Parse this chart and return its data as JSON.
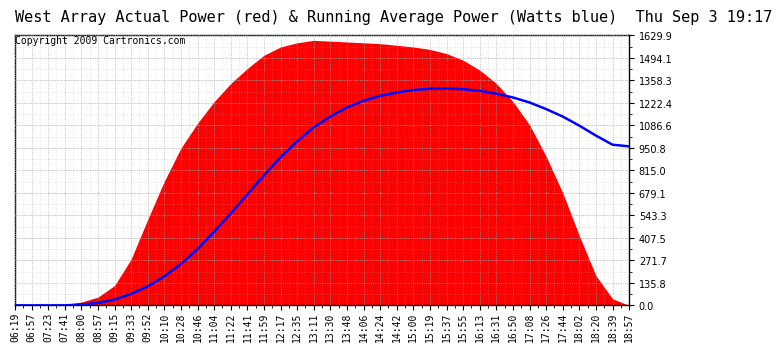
{
  "title": "West Array Actual Power (red) & Running Average Power (Watts blue)  Thu Sep 3 19:17",
  "copyright": "Copyright 2009 Cartronics.com",
  "ymin": 0.0,
  "ymax": 1629.9,
  "yticks": [
    0.0,
    135.8,
    271.7,
    407.5,
    543.3,
    679.1,
    815.0,
    950.8,
    1086.6,
    1222.4,
    1358.3,
    1494.1,
    1629.9
  ],
  "xtick_labels": [
    "06:19",
    "06:57",
    "07:23",
    "07:41",
    "08:00",
    "08:57",
    "09:15",
    "09:33",
    "09:52",
    "10:10",
    "10:28",
    "10:46",
    "11:04",
    "11:22",
    "11:41",
    "11:59",
    "12:17",
    "12:35",
    "13:11",
    "13:30",
    "13:48",
    "14:06",
    "14:24",
    "14:42",
    "15:00",
    "15:19",
    "15:37",
    "15:55",
    "16:13",
    "16:31",
    "16:50",
    "17:08",
    "17:26",
    "17:44",
    "18:02",
    "18:20",
    "18:39",
    "18:57"
  ],
  "background_color": "#ffffff",
  "fill_color": "#ff0000",
  "line_color": "#0000ff",
  "title_color": "#000000",
  "grid_color": "#aaaaaa",
  "title_fontsize": 11,
  "copyright_fontsize": 7,
  "tick_fontsize": 7,
  "actual_power": [
    0,
    0,
    0,
    5,
    20,
    50,
    120,
    280,
    520,
    750,
    950,
    1100,
    1230,
    1340,
    1430,
    1510,
    1560,
    1585,
    1600,
    1595,
    1590,
    1585,
    1580,
    1570,
    1560,
    1545,
    1520,
    1480,
    1420,
    1340,
    1230,
    1090,
    900,
    680,
    420,
    180,
    40,
    0
  ],
  "avg_power": [
    0,
    0,
    0,
    0,
    5,
    15,
    35,
    70,
    115,
    175,
    250,
    340,
    445,
    555,
    670,
    785,
    895,
    990,
    1075,
    1140,
    1195,
    1235,
    1265,
    1285,
    1300,
    1308,
    1310,
    1305,
    1295,
    1278,
    1255,
    1225,
    1185,
    1140,
    1085,
    1025,
    970,
    960
  ]
}
